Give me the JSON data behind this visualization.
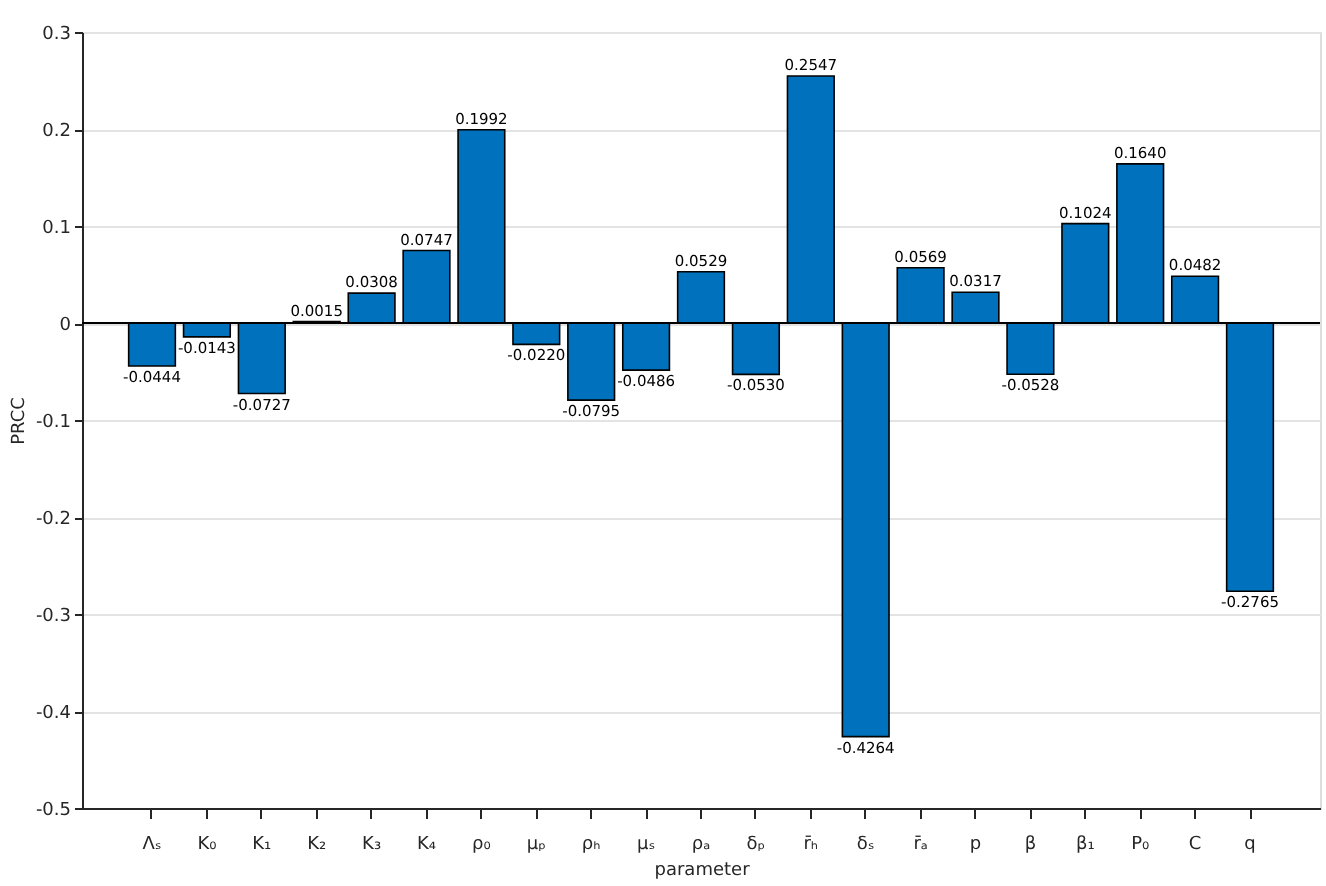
{
  "chart_data": {
    "type": "bar",
    "xlabel": "parameter",
    "ylabel": "PRCC",
    "categories": [
      "Λₛ",
      "K₀",
      "K₁",
      "K₂",
      "K₃",
      "K₄",
      "ρ₀",
      "μₚ",
      "ρₕ",
      "μₛ",
      "ρₐ",
      "δₚ",
      "r̄ₕ",
      "δₛ",
      "r̄ₐ",
      "p",
      "β",
      "β₁",
      "P₀",
      "C",
      "q"
    ],
    "values": [
      -0.0444,
      -0.0143,
      -0.0727,
      0.0015,
      0.0308,
      0.0747,
      0.1992,
      -0.022,
      -0.0795,
      -0.0486,
      0.0529,
      -0.053,
      0.2547,
      -0.4264,
      0.0569,
      0.0317,
      -0.0528,
      0.1024,
      0.164,
      0.0482,
      -0.2765
    ],
    "value_labels": [
      "-0.0444",
      "-0.0143",
      "-0.0727",
      "0.0015",
      "0.0308",
      "0.0747",
      "0.1992",
      "-0.0220",
      "-0.0795",
      "-0.0486",
      "0.0529",
      "-0.0530",
      "0.2547",
      "-0.4264",
      "0.0569",
      "0.0317",
      "-0.0528",
      "0.1024",
      "0.1640",
      "0.0482",
      "-0.2765"
    ],
    "color": "#0072bd",
    "ylim": [
      -0.5,
      0.3
    ],
    "yticks": [
      -0.5,
      -0.4,
      -0.3,
      -0.2,
      -0.1,
      0,
      0.1,
      0.2,
      0.3
    ],
    "ref_lines": [
      {
        "axis": "y",
        "value": 0,
        "color": "#000000"
      }
    ],
    "grid": "y"
  }
}
